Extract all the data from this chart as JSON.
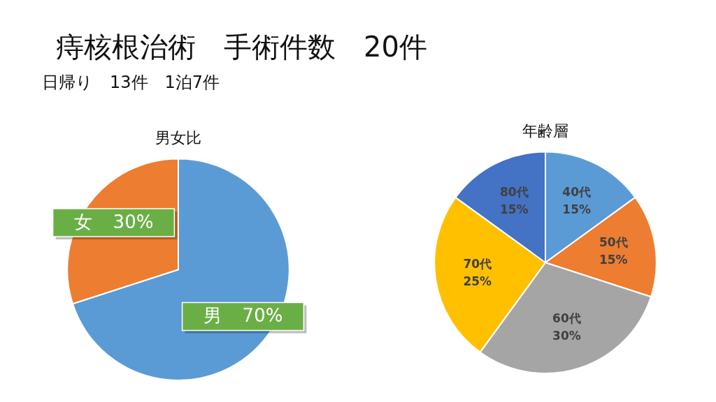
{
  "chart_data": [
    {
      "type": "other",
      "title": "痔核根治術　手術件数　20件",
      "subtitle": "日帰り　13件　1泊7件"
    },
    {
      "type": "pie",
      "title": "男女比",
      "categories": [
        "男",
        "女"
      ],
      "values": [
        70,
        30
      ],
      "colors": [
        "#5b9bd5",
        "#ed7d31"
      ],
      "value_labels": [
        "70%",
        "30%"
      ]
    },
    {
      "type": "pie",
      "title": "年齢層",
      "categories": [
        "40代",
        "50代",
        "60代",
        "70代",
        "80代"
      ],
      "values": [
        15,
        15,
        30,
        25,
        15
      ],
      "colors": [
        "#5b9bd5",
        "#ed7d31",
        "#a5a5a5",
        "#ffc000",
        "#4472c4"
      ],
      "value_labels": [
        "15%",
        "15%",
        "30%",
        "25%",
        "15%"
      ]
    }
  ]
}
